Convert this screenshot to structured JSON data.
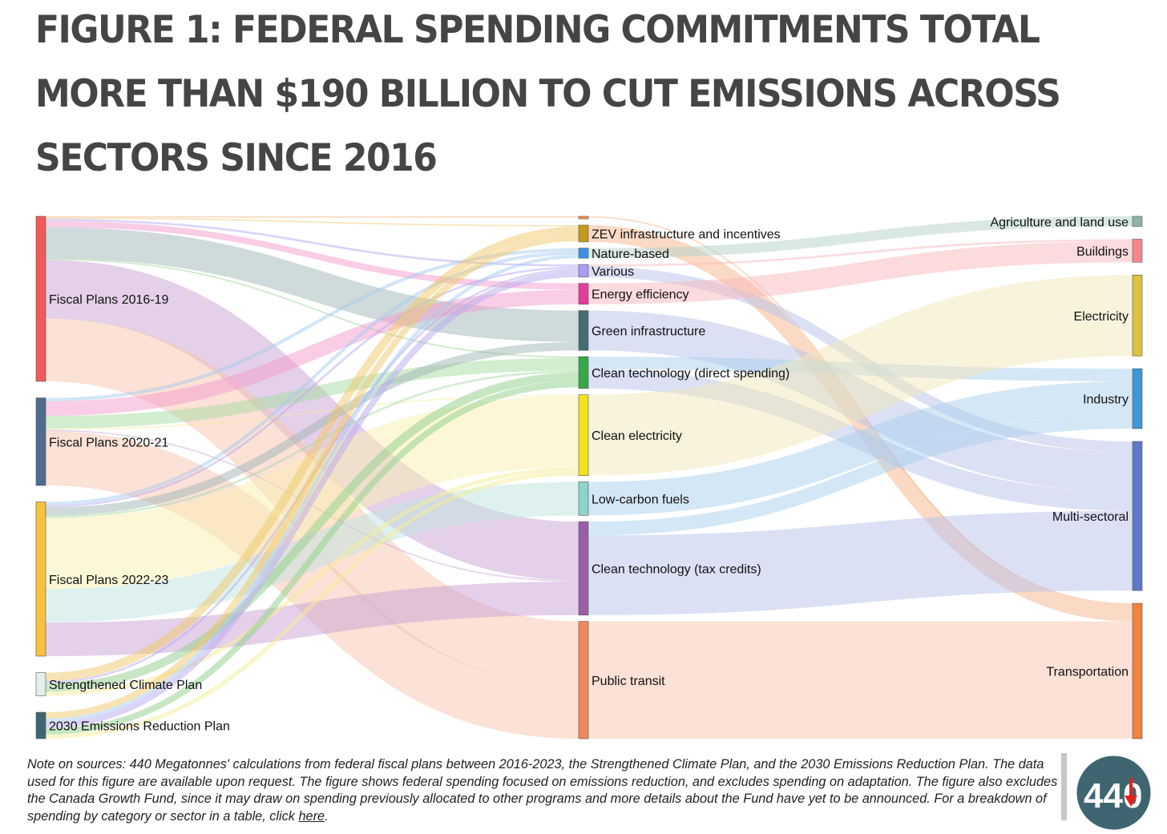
{
  "title": "FIGURE 1: FEDERAL SPENDING COMMITMENTS TOTAL MORE THAN $190 BILLION TO CUT EMISSIONS ACROSS SECTORS SINCE 2016",
  "note": {
    "text": "Note on sources: 440 Megatonnes' calculations from federal fiscal plans between 2016-2023, the Strengthened Climate Plan, and the 2030 Emissions Reduction Plan. The data used for this figure are available upon request. The figure shows federal spending focused on emissions reduction, and excludes spending on adaptation. The figure also excludes the Canada Growth Fund, since it may draw on spending previously allocated to other programs and more details about the Fund have yet to be announced. For a breakdown of spending by category or sector in a table, click ",
    "link_text": "here",
    "suffix": "."
  },
  "logo": {
    "text": "440",
    "arrow_color": "#e2231a",
    "bg_color": "#3f6670"
  },
  "chart_data": {
    "type": "sankey",
    "title": "",
    "nodes": [
      {
        "id": "fp1619",
        "label": "Fiscal Plans 2016-19",
        "column": 0,
        "color": "#f05a5a"
      },
      {
        "id": "fp2021",
        "label": "Fiscal Plans 2020-21",
        "column": 0,
        "color": "#4e6d8e"
      },
      {
        "id": "fp2223",
        "label": "Fiscal Plans 2022-23",
        "column": 0,
        "color": "#f9c13c"
      },
      {
        "id": "scp",
        "label": "Strengthened Climate Plan",
        "column": 0,
        "color": "#e2efea"
      },
      {
        "id": "erp",
        "label": "2030 Emissions Reduction Plan",
        "column": 0,
        "color": "#3f6670"
      },
      {
        "id": "unl",
        "label": "",
        "column": 1,
        "color": "#f4924a"
      },
      {
        "id": "zev",
        "label": "ZEV infrastructure and incentives",
        "column": 1,
        "color": "#c49a1c"
      },
      {
        "id": "nat",
        "label": "Nature-based",
        "column": 1,
        "color": "#3b8ee6"
      },
      {
        "id": "var",
        "label": "Various",
        "column": 1,
        "color": "#a99cf2"
      },
      {
        "id": "eff",
        "label": "Energy efficiency",
        "column": 1,
        "color": "#e43c9b"
      },
      {
        "id": "gi",
        "label": "Green infrastructure",
        "column": 1,
        "color": "#476b72"
      },
      {
        "id": "ctd",
        "label": "Clean technology (direct spending)",
        "column": 1,
        "color": "#37a84a"
      },
      {
        "id": "ce",
        "label": "Clean electricity",
        "column": 1,
        "color": "#f2e21c"
      },
      {
        "id": "lcf",
        "label": "Low-carbon fuels",
        "column": 1,
        "color": "#8dd3c7"
      },
      {
        "id": "ctt",
        "label": "Clean technology (tax credits)",
        "column": 1,
        "color": "#9a5fa8"
      },
      {
        "id": "pt",
        "label": "Public transit",
        "column": 1,
        "color": "#f0885a"
      },
      {
        "id": "agr",
        "label": "Agriculture and land use",
        "column": 2,
        "color": "#8fb4a8"
      },
      {
        "id": "bld",
        "label": "Buildings",
        "column": 2,
        "color": "#f7868a"
      },
      {
        "id": "ele",
        "label": "Electricity",
        "column": 2,
        "color": "#dcc23e"
      },
      {
        "id": "ind",
        "label": "Industry",
        "column": 2,
        "color": "#3d97d8"
      },
      {
        "id": "mul",
        "label": "Multi-sectoral",
        "column": 2,
        "color": "#5c78c8"
      },
      {
        "id": "tra",
        "label": "Transportation",
        "column": 2,
        "color": "#f5813a"
      }
    ],
    "links": [
      {
        "source": "fp1619",
        "target": "unl",
        "value": 0.3,
        "color": "#f4b183"
      },
      {
        "source": "fp1619",
        "target": "zev",
        "value": 0.3,
        "color": "#f0c869"
      },
      {
        "source": "fp1619",
        "target": "var",
        "value": 0.5,
        "color": "#b7a9f0"
      },
      {
        "source": "fp1619",
        "target": "eff",
        "value": 1.5,
        "color": "#f39ccd"
      },
      {
        "source": "fp1619",
        "target": "gi",
        "value": 7.5,
        "color": "#9fb5b5"
      },
      {
        "source": "fp1619",
        "target": "ctd",
        "value": 0.3,
        "color": "#8fd08a"
      },
      {
        "source": "fp1619",
        "target": "ctt",
        "value": 14.0,
        "color": "#c9a2d3"
      },
      {
        "source": "fp1619",
        "target": "pt",
        "value": 15.0,
        "color": "#f8c3ae"
      },
      {
        "source": "fp2021",
        "target": "nat",
        "value": 0.8,
        "color": "#a8cbf0"
      },
      {
        "source": "fp2021",
        "target": "eff",
        "value": 3.5,
        "color": "#f39ccd"
      },
      {
        "source": "fp2021",
        "target": "ctd",
        "value": 3.0,
        "color": "#a6dca1"
      },
      {
        "source": "fp2021",
        "target": "ce",
        "value": 0.3,
        "color": "#f5ee98"
      },
      {
        "source": "fp2021",
        "target": "ctt",
        "value": 0.3,
        "color": "#c9a2d3"
      },
      {
        "source": "fp2021",
        "target": "pt",
        "value": 13.0,
        "color": "#f8c3ae"
      },
      {
        "source": "fp2023",
        "target": "zev",
        "value": 0.3,
        "color": "#f0c869"
      },
      {
        "source": "fp2223",
        "target": "nat",
        "value": 0.8,
        "color": "#a8cbf0"
      },
      {
        "source": "fp2223",
        "target": "var",
        "value": 0.5,
        "color": "#b7a9f0"
      },
      {
        "source": "fp2223",
        "target": "gi",
        "value": 2.0,
        "color": "#9fb5b5"
      },
      {
        "source": "fp2223",
        "target": "ctd",
        "value": 0.5,
        "color": "#a6dca1"
      },
      {
        "source": "fp2223",
        "target": "ce",
        "value": 17.0,
        "color": "#f7f0b0"
      },
      {
        "source": "fp2223",
        "target": "lcf",
        "value": 8.0,
        "color": "#bfe4df"
      },
      {
        "source": "fp2223",
        "target": "ctt",
        "value": 8.0,
        "color": "#c9a2d3"
      },
      {
        "source": "scp",
        "target": "zev",
        "value": 2.0,
        "color": "#f0c869"
      },
      {
        "source": "scp",
        "target": "var",
        "value": 0.5,
        "color": "#b7a9f0"
      },
      {
        "source": "scp",
        "target": "ctd",
        "value": 2.0,
        "color": "#8fd08a"
      },
      {
        "source": "scp",
        "target": "ce",
        "value": 1.0,
        "color": "#f5ee98"
      },
      {
        "source": "erp",
        "target": "zev",
        "value": 1.5,
        "color": "#f0c869"
      },
      {
        "source": "erp",
        "target": "nat",
        "value": 0.8,
        "color": "#a8cbf0"
      },
      {
        "source": "erp",
        "target": "var",
        "value": 1.5,
        "color": "#b7a9f0"
      },
      {
        "source": "erp",
        "target": "ctd",
        "value": 1.5,
        "color": "#8fd08a"
      },
      {
        "source": "erp",
        "target": "ce",
        "value": 1.0,
        "color": "#f5ee98"
      },
      {
        "source": "unl",
        "target": "tra",
        "value": 0.3,
        "color": "#f4b183"
      },
      {
        "source": "zev",
        "target": "tra",
        "value": 4.0,
        "color": "#f8b58c"
      },
      {
        "source": "nat",
        "target": "agr",
        "value": 2.4,
        "color": "#b4d1c8"
      },
      {
        "source": "var",
        "target": "bld",
        "value": 0.5,
        "color": "#f7b8bb"
      },
      {
        "source": "var",
        "target": "mul",
        "value": 2.5,
        "color": "#b7c1ea"
      },
      {
        "source": "eff",
        "target": "bld",
        "value": 5.0,
        "color": "#f7b8bb"
      },
      {
        "source": "gi",
        "target": "mul",
        "value": 9.5,
        "color": "#b7c1ea"
      },
      {
        "source": "ctd",
        "target": "ind",
        "value": 3.0,
        "color": "#a9cfee"
      },
      {
        "source": "ctd",
        "target": "mul",
        "value": 4.6,
        "color": "#b7c1ea"
      },
      {
        "source": "ce",
        "target": "ele",
        "value": 19.3,
        "color": "#f2e7b8"
      },
      {
        "source": "lcf",
        "target": "ind",
        "value": 8.0,
        "color": "#a9cfee"
      },
      {
        "source": "ctt",
        "target": "ind",
        "value": 3.3,
        "color": "#a9cfee"
      },
      {
        "source": "ctt",
        "target": "mul",
        "value": 19.0,
        "color": "#b7c1ea"
      },
      {
        "source": "pt",
        "target": "tra",
        "value": 28.0,
        "color": "#f8c3ae"
      }
    ]
  }
}
